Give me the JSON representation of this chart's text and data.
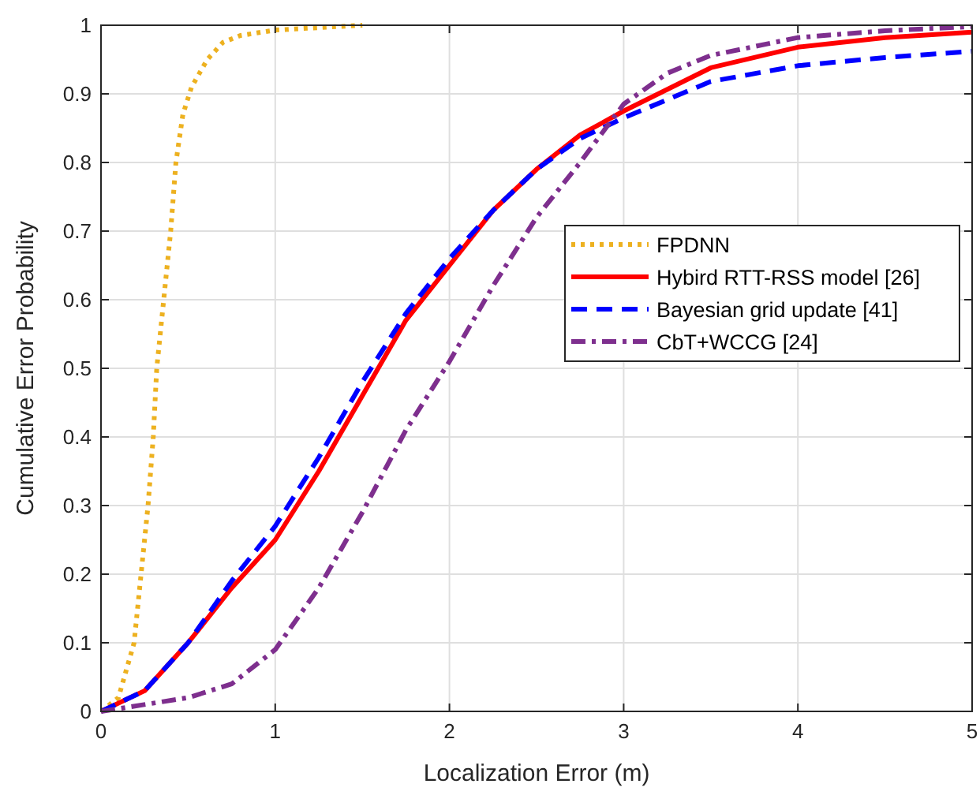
{
  "chart_data": {
    "type": "line",
    "xlabel": "Localization Error (m)",
    "ylabel": "Cumulative Error Probability",
    "xlim": [
      0,
      5
    ],
    "ylim": [
      0,
      1
    ],
    "xticks": [
      0,
      1,
      2,
      3,
      4,
      5
    ],
    "yticks": [
      0,
      0.1,
      0.2,
      0.3,
      0.4,
      0.5,
      0.6,
      0.7,
      0.8,
      0.9,
      1
    ],
    "grid": true,
    "legend": "right",
    "marker": "none",
    "series": [
      {
        "name": "FPDNN",
        "color": "#edb120",
        "line_style": "dotted",
        "x": [
          0,
          0.1,
          0.19,
          0.23,
          0.27,
          0.3,
          0.32,
          0.36,
          0.4,
          0.43,
          0.47,
          0.52,
          0.61,
          0.7,
          0.8,
          1.0,
          1.5
        ],
        "values": [
          0,
          0.02,
          0.1,
          0.2,
          0.3,
          0.4,
          0.5,
          0.6,
          0.7,
          0.8,
          0.87,
          0.91,
          0.95,
          0.975,
          0.985,
          0.993,
          1.0
        ]
      },
      {
        "name": "Hybird RTT-RSS model [26]",
        "color": "#ff0000",
        "line_style": "solid",
        "x": [
          0,
          0.25,
          0.5,
          0.75,
          1.0,
          1.25,
          1.5,
          1.75,
          2.0,
          2.25,
          2.5,
          2.75,
          3.0,
          3.5,
          4.0,
          4.5,
          5
        ],
        "values": [
          0,
          0.03,
          0.1,
          0.18,
          0.25,
          0.35,
          0.46,
          0.57,
          0.65,
          0.73,
          0.79,
          0.84,
          0.875,
          0.938,
          0.968,
          0.982,
          0.99
        ]
      },
      {
        "name": "Bayesian grid update [41]",
        "color": "#0000ff",
        "line_style": "dashed",
        "x": [
          0,
          0.25,
          0.5,
          0.75,
          1.0,
          1.25,
          1.5,
          1.75,
          2.0,
          2.25,
          2.5,
          2.75,
          3.0,
          3.5,
          4.0,
          4.5,
          5
        ],
        "values": [
          0,
          0.03,
          0.1,
          0.19,
          0.27,
          0.37,
          0.48,
          0.58,
          0.66,
          0.73,
          0.79,
          0.835,
          0.865,
          0.918,
          0.941,
          0.953,
          0.962
        ]
      },
      {
        "name": "CbT+WCCG [24]",
        "color": "#7e2f8e",
        "line_style": "dashdot",
        "x": [
          0,
          0.5,
          0.75,
          1.0,
          1.25,
          1.5,
          1.75,
          2.0,
          2.25,
          2.5,
          2.75,
          3.0,
          3.25,
          3.5,
          4.0,
          4.5,
          5
        ],
        "values": [
          0,
          0.02,
          0.04,
          0.09,
          0.18,
          0.29,
          0.41,
          0.51,
          0.62,
          0.72,
          0.8,
          0.885,
          0.93,
          0.956,
          0.982,
          0.992,
          0.998
        ]
      }
    ]
  }
}
